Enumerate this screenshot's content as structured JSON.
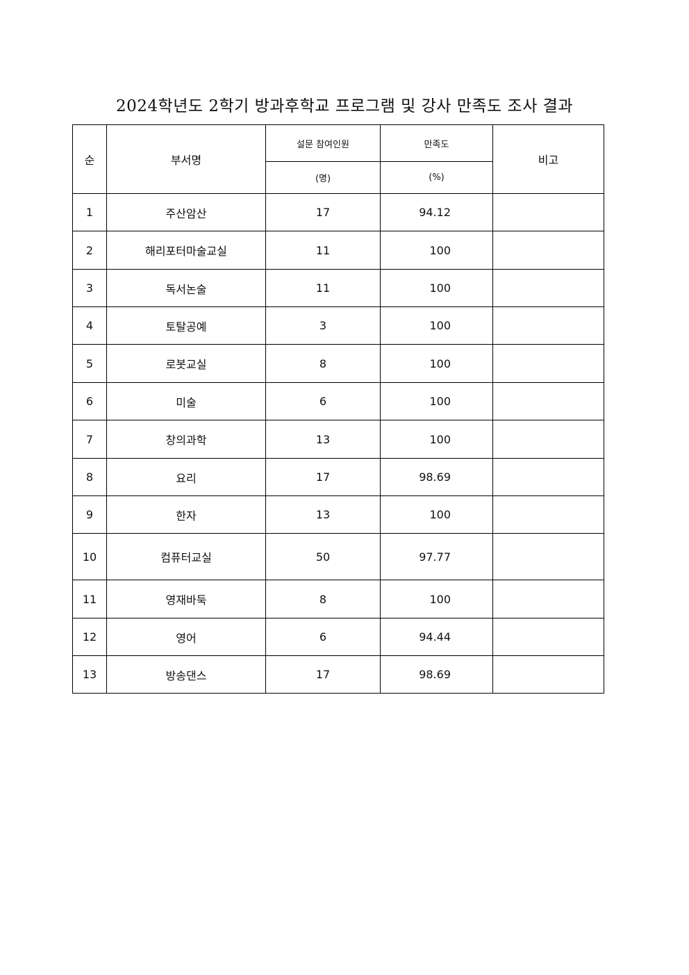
{
  "title": "2024학년도 2학기 방과후학교 프로그램 및 강사 만족도 조사 결과",
  "headers": {
    "no": "순",
    "name": "부서명",
    "participants": "설문 참여인원",
    "participants_unit": "(명)",
    "satisfaction": "만족도",
    "satisfaction_unit": "(%)",
    "note": "비고"
  },
  "rows": [
    {
      "no": "1",
      "name": "주산암산",
      "participants": "17",
      "satisfaction": "94.12",
      "note": ""
    },
    {
      "no": "2",
      "name": "해리포터마술교실",
      "participants": "11",
      "satisfaction": "100",
      "note": ""
    },
    {
      "no": "3",
      "name": "독서논술",
      "participants": "11",
      "satisfaction": "100",
      "note": ""
    },
    {
      "no": "4",
      "name": "토탈공예",
      "participants": "3",
      "satisfaction": "100",
      "note": ""
    },
    {
      "no": "5",
      "name": "로봇교실",
      "participants": "8",
      "satisfaction": "100",
      "note": ""
    },
    {
      "no": "6",
      "name": "미술",
      "participants": "6",
      "satisfaction": "100",
      "note": ""
    },
    {
      "no": "7",
      "name": "창의과학",
      "participants": "13",
      "satisfaction": "100",
      "note": ""
    },
    {
      "no": "8",
      "name": "요리",
      "participants": "17",
      "satisfaction": "98.69",
      "note": ""
    },
    {
      "no": "9",
      "name": "한자",
      "participants": "13",
      "satisfaction": "100",
      "note": ""
    },
    {
      "no": "10",
      "name": "컴퓨터교실",
      "participants": "50",
      "satisfaction": "97.77",
      "note": ""
    },
    {
      "no": "11",
      "name": "영재바둑",
      "participants": "8",
      "satisfaction": "100",
      "note": ""
    },
    {
      "no": "12",
      "name": "영어",
      "participants": "6",
      "satisfaction": "94.44",
      "note": ""
    },
    {
      "no": "13",
      "name": "방송댄스",
      "participants": "17",
      "satisfaction": "98.69",
      "note": ""
    }
  ]
}
